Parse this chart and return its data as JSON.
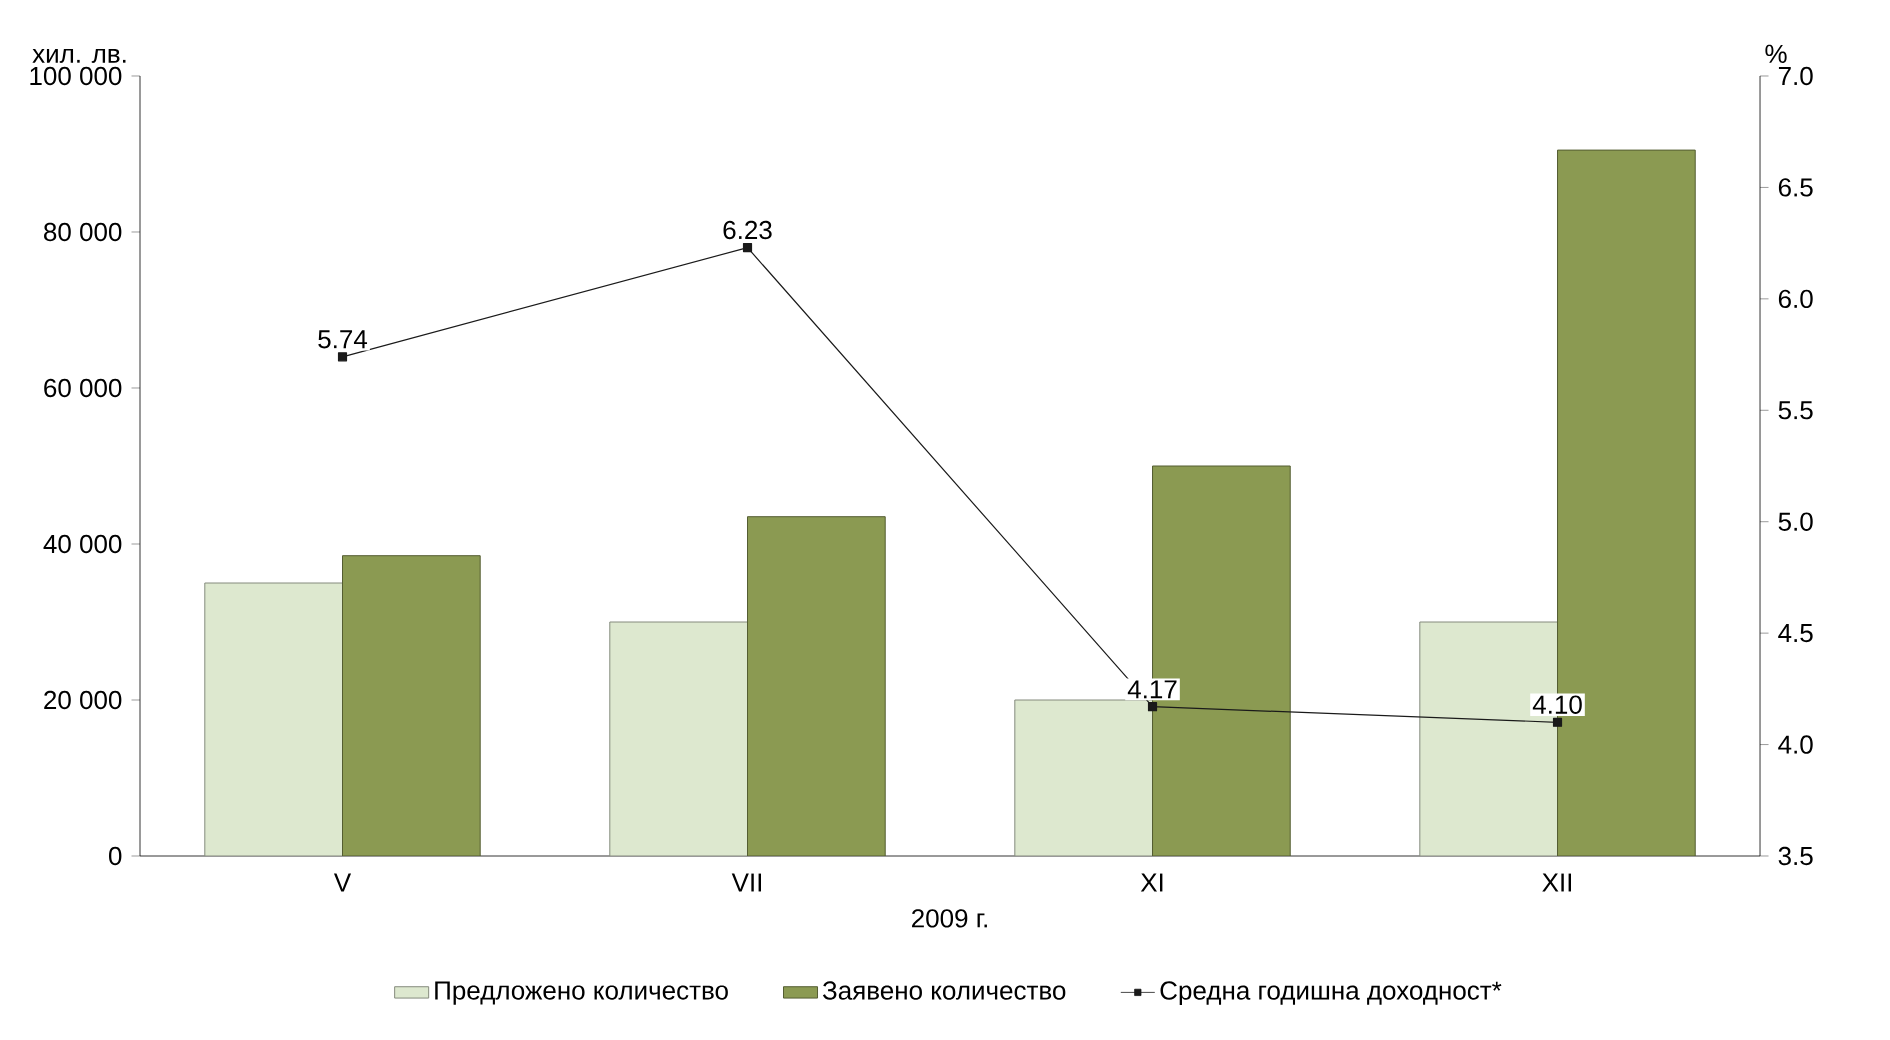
{
  "chart_data": {
    "type": "bar",
    "xlabel": "2009 г.",
    "ylabel": "хил. лв.",
    "y2label": "%",
    "categories": [
      "V",
      "VII",
      "XI",
      "XII"
    ],
    "series": [
      {
        "name": "Предложено количество",
        "color": "#dde8cf",
        "values": [
          35000,
          30000,
          20000,
          30000
        ]
      },
      {
        "name": "Заявено количество",
        "color": "#8b9a52",
        "values": [
          38500,
          43500,
          50000,
          90500
        ]
      },
      {
        "name": "Средна годишна доходност*",
        "type": "line",
        "axis": "y2",
        "color": "#1a1a1a",
        "marker": "square",
        "values": [
          5.74,
          6.23,
          4.17,
          4.1
        ],
        "value_labels": [
          "5.74",
          "6.23",
          "4.17",
          "4.10"
        ]
      }
    ],
    "ylim": [
      0,
      100000
    ],
    "yticks": [
      0,
      {
        "value": 20000,
        "label": "20 000"
      },
      {
        "value": 40000,
        "label": "40 000"
      },
      {
        "value": 60000,
        "label": "60 000"
      },
      {
        "value": 80000,
        "label": "80 000"
      },
      {
        "value": 100000,
        "label": "100 000"
      }
    ],
    "y2lim": [
      3.5,
      7.0
    ],
    "y2ticks": [
      3.5,
      {
        "value": 4.0,
        "label": "4.0"
      },
      4.5,
      {
        "value": 5.0,
        "label": "5.0"
      },
      5.5,
      {
        "value": 6.0,
        "label": "6.0"
      },
      6.5,
      {
        "value": 7.0,
        "label": "7.0"
      }
    ],
    "legend": "bottom",
    "grid": false
  }
}
